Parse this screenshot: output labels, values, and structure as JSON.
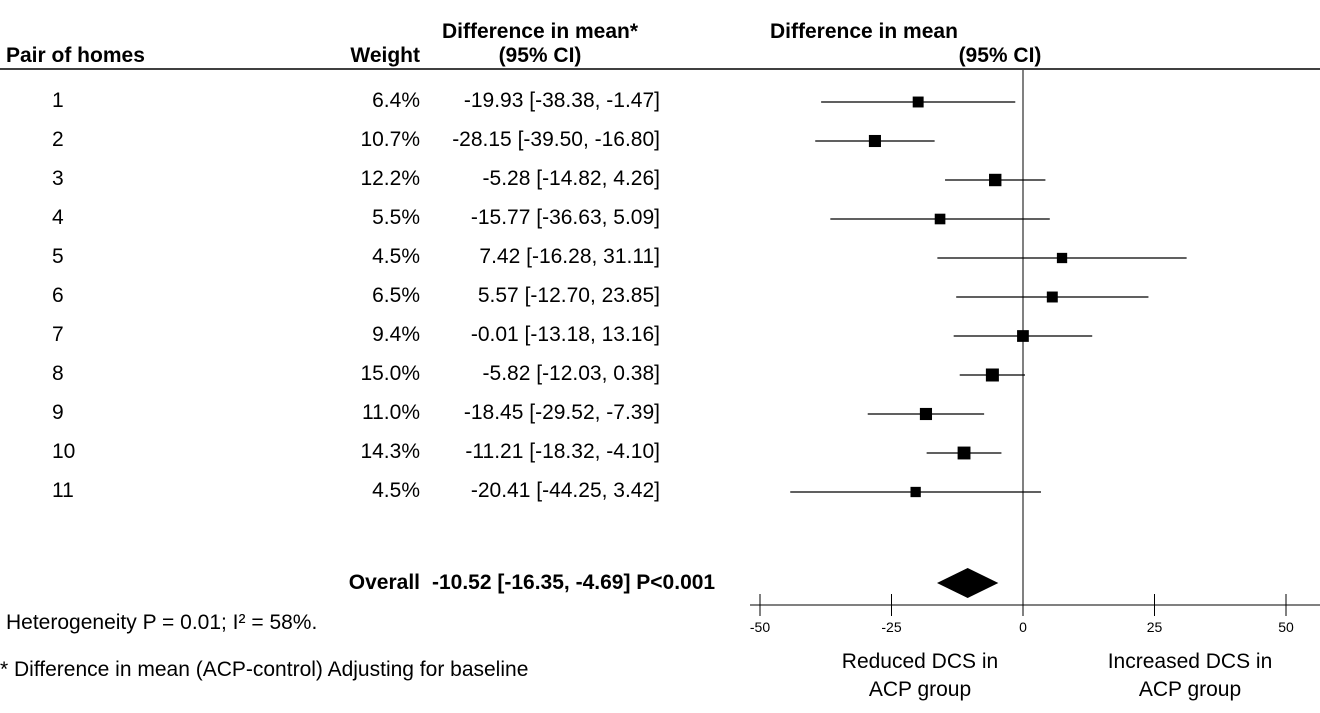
{
  "headers": {
    "study": "Pair of homes",
    "weight": "Weight",
    "ci_line1": "Difference in mean*",
    "ci_line2": "(95% CI)",
    "plot_line1": "Difference in mean",
    "plot_line2": "(95% CI)"
  },
  "rows": [
    {
      "label": "1",
      "weight": "6.4%",
      "ci_text": "-19.93 [-38.38, -1.47]"
    },
    {
      "label": "2",
      "weight": "10.7%",
      "ci_text": "-28.15 [-39.50, -16.80]"
    },
    {
      "label": "3",
      "weight": "12.2%",
      "ci_text": "-5.28 [-14.82, 4.26]"
    },
    {
      "label": "4",
      "weight": "5.5%",
      "ci_text": "-15.77 [-36.63, 5.09]"
    },
    {
      "label": "5",
      "weight": "4.5%",
      "ci_text": "7.42 [-16.28, 31.11]"
    },
    {
      "label": "6",
      "weight": "6.5%",
      "ci_text": "5.57 [-12.70, 23.85]"
    },
    {
      "label": "7",
      "weight": "9.4%",
      "ci_text": "-0.01 [-13.18, 13.16]"
    },
    {
      "label": "8",
      "weight": "15.0%",
      "ci_text": "-5.82 [-12.03, 0.38]"
    },
    {
      "label": "9",
      "weight": "11.0%",
      "ci_text": "-18.45 [-29.52, -7.39]"
    },
    {
      "label": "10",
      "weight": "14.3%",
      "ci_text": "-11.21 [-18.32, -4.10]"
    },
    {
      "label": "11",
      "weight": "4.5%",
      "ci_text": "-20.41 [-44.25, 3.42]"
    }
  ],
  "overall": {
    "label": "Overall",
    "ci_text": "-10.52 [-16.35, -4.69] P<0.001"
  },
  "heterogeneity": "Heterogeneity P = 0.01; I² = 58%.",
  "footnote": "* Difference in mean (ACP-control) Adjusting for baseline",
  "axis_labels": {
    "left_line1": "Reduced DCS in",
    "left_line2": "ACP group",
    "right_line1": "Increased DCS in",
    "right_line2": "ACP group"
  },
  "chart_data": {
    "type": "forest",
    "xlim": [
      -50,
      50
    ],
    "xticks": [
      -50,
      -25,
      0,
      25,
      50
    ],
    "reference_line": 0,
    "studies": [
      {
        "label": "1",
        "mean": -19.93,
        "lower": -38.38,
        "upper": -1.47,
        "weight": 6.4
      },
      {
        "label": "2",
        "mean": -28.15,
        "lower": -39.5,
        "upper": -16.8,
        "weight": 10.7
      },
      {
        "label": "3",
        "mean": -5.28,
        "lower": -14.82,
        "upper": 4.26,
        "weight": 12.2
      },
      {
        "label": "4",
        "mean": -15.77,
        "lower": -36.63,
        "upper": 5.09,
        "weight": 5.5
      },
      {
        "label": "5",
        "mean": 7.42,
        "lower": -16.28,
        "upper": 31.11,
        "weight": 4.5
      },
      {
        "label": "6",
        "mean": 5.57,
        "lower": -12.7,
        "upper": 23.85,
        "weight": 6.5
      },
      {
        "label": "7",
        "mean": -0.01,
        "lower": -13.18,
        "upper": 13.16,
        "weight": 9.4
      },
      {
        "label": "8",
        "mean": -5.82,
        "lower": -12.03,
        "upper": 0.38,
        "weight": 15.0
      },
      {
        "label": "9",
        "mean": -18.45,
        "lower": -29.52,
        "upper": -7.39,
        "weight": 11.0
      },
      {
        "label": "10",
        "mean": -11.21,
        "lower": -18.32,
        "upper": -4.1,
        "weight": 14.3
      },
      {
        "label": "11",
        "mean": -20.41,
        "lower": -44.25,
        "upper": 3.42,
        "weight": 4.5
      }
    ],
    "overall": {
      "mean": -10.52,
      "lower": -16.35,
      "upper": -4.69
    }
  }
}
